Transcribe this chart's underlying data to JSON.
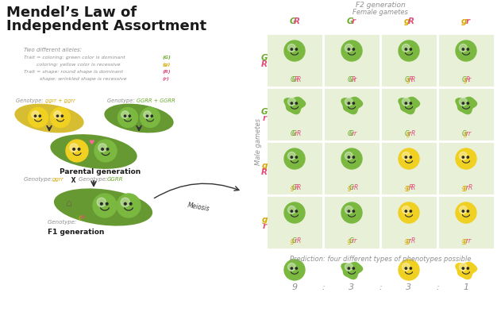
{
  "title_line1": "Mendel’s Law of",
  "title_line2": "Independent Assortment",
  "bg_color": "#ffffff",
  "green_pea": "#7ab840",
  "yellow_pea": "#f0d020",
  "green_dark": "#6aaa2a",
  "yellow_dark": "#d4a800",
  "pink": "#e0507a",
  "gray": "#909090",
  "light_green_bg": "#e8f0d8",
  "pod_green": "#5a9020",
  "pod_yellow": "#d4b820",
  "white": "#ffffff",
  "cells": [
    [
      "GGRR",
      "GGRr",
      "GgRR",
      "GgRr"
    ],
    [
      "GGrR",
      "GGrr",
      "GgrR",
      "Ggrr"
    ],
    [
      "gGRR",
      "gGrR",
      "ggRR",
      "ggrR"
    ],
    [
      "gGrR",
      "gGrr",
      "ggrR",
      "ggrr"
    ]
  ],
  "cell_colors": [
    [
      "green",
      "green",
      "green",
      "green"
    ],
    [
      "green",
      "green",
      "green",
      "green"
    ],
    [
      "green",
      "green",
      "yellow",
      "yellow"
    ],
    [
      "green",
      "green",
      "yellow",
      "yellow"
    ]
  ],
  "col_headers": [
    "GR",
    "Gr",
    "gR",
    "gr"
  ],
  "row_headers": [
    "GR",
    "Gr",
    "gR",
    "gr"
  ],
  "f2_title": "F2 generation",
  "female_label": "Female gametes",
  "male_label": "Male gametes",
  "prediction": "Prediction: four different types of phenotypes possible",
  "ratio_numbers": [
    "9",
    "3",
    "3",
    "1"
  ],
  "ratio_colors": [
    "green",
    "green",
    "yellow",
    "yellow"
  ],
  "ratio_wrinkled": [
    false,
    true,
    false,
    true
  ],
  "legend_title": "Two different alleles:",
  "legend_lines": [
    [
      "Trait = coloring: green color is dominant",
      "(G)",
      "#6aaa2a"
    ],
    [
      "        coloring: yellow color is recessive",
      "(g)",
      "#d4a800"
    ],
    [
      "Trait = shape: round shape is dominant",
      "(R)",
      "#e0507a"
    ],
    [
      "          shape: wrinkled shape is recessive",
      "(r)",
      "#e0507a"
    ]
  ],
  "p_gen_label": "Parental generation",
  "f1_label": "F1 generation",
  "meiosis_label": "Meiosis"
}
